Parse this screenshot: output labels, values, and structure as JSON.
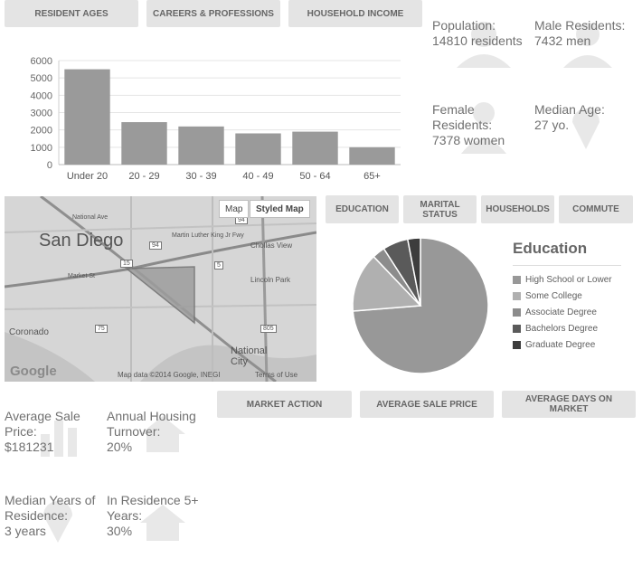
{
  "top_tabs": [
    "RESIDENT AGES",
    "CAREERS & PROFESSIONS",
    "HOUSEHOLD INCOME"
  ],
  "stats_top": [
    {
      "label": "Population:",
      "value": "14810 residents"
    },
    {
      "label": "Male Residents:",
      "value": "7432 men"
    },
    {
      "label": "Female Residents:",
      "value": "7378 women"
    },
    {
      "label": "Median Age:",
      "value": "27 yo."
    }
  ],
  "map": {
    "city": "San Diego",
    "places": [
      "National City",
      "Coronado",
      "Chollas View",
      "Lincoln Park"
    ],
    "toggle_map": "Map",
    "toggle_styled": "Styled Map",
    "logo": "Google",
    "attribution": "Map data ©2014 Google, INEGI",
    "terms": "Terms of Use",
    "road_shields": [
      "94",
      "15",
      "94",
      "5",
      "75",
      "805"
    ],
    "road_names": [
      "Market St",
      "Martin Luther King Jr Fwy",
      "National Ave"
    ]
  },
  "mid_tabs": [
    "EDUCATION",
    "MARITAL STATUS",
    "HOUSEHOLDS",
    "COMMUTE"
  ],
  "bottom_tabs": [
    "MARKET ACTION",
    "AVERAGE SALE PRICE",
    "AVERAGE DAYS ON MARKET"
  ],
  "stats_bottom": [
    {
      "label": "Average Sale Price:",
      "value": "$181231"
    },
    {
      "label": "Annual Housing Turnover:",
      "value": "20%"
    },
    {
      "label": "Median Years of Residence:",
      "value": "3 years"
    },
    {
      "label": "In Residence 5+ Years:",
      "value": "30%"
    }
  ],
  "colors": {
    "bar": "#9a9a9a",
    "button_bg": "#e4e4e4",
    "pie": [
      "#989898",
      "#b0b0b0",
      "#8c8c8c",
      "#5a5a5a",
      "#3d3d3d"
    ]
  },
  "chart_data": [
    {
      "type": "bar",
      "title": "",
      "xlabel": "",
      "ylabel": "",
      "categories": [
        "Under 20",
        "20 - 29",
        "30 - 39",
        "40 - 49",
        "50 - 64",
        "65+"
      ],
      "values": [
        5500,
        2450,
        2200,
        1800,
        1900,
        1000
      ],
      "ylim": [
        0,
        6000
      ],
      "yticks": [
        "0",
        "1000",
        "2000",
        "3000",
        "4000",
        "5000",
        "6000"
      ],
      "grid": true
    },
    {
      "type": "pie",
      "title": "Education",
      "legend_position": "right",
      "labels": [
        "High School or Lower",
        "Some College",
        "Associate Degree",
        "Bachelors Degree",
        "Graduate Degree"
      ],
      "values": [
        73,
        14,
        3,
        6,
        3
      ]
    }
  ]
}
